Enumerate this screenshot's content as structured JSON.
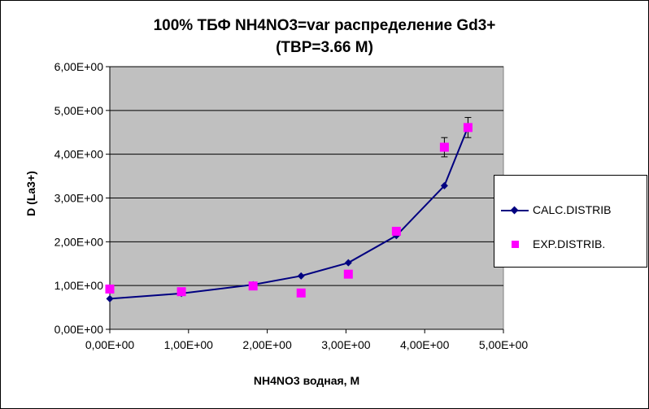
{
  "chart_data": {
    "type": "scatter",
    "title": "100%  ТБФ  NH4NO3=var распределение Gd3+",
    "subtitle": "(TBP=3.66 M)",
    "xlabel": "NH4NO3  водная, М",
    "ylabel": "D (La3+)",
    "xlim": [
      0,
      5
    ],
    "ylim": [
      0,
      6
    ],
    "x_ticks": [
      "0,00E+00",
      "1,00E+00",
      "2,00E+00",
      "3,00E+00",
      "4,00E+00",
      "5,00E+00"
    ],
    "y_ticks": [
      "0,00E+00",
      "1,00E+00",
      "2,00E+00",
      "3,00E+00",
      "4,00E+00",
      "5,00E+00",
      "6,00E+00"
    ],
    "grid": "horizontal",
    "plot_background": "#c0c0c0",
    "legend_position": "right",
    "series": [
      {
        "name": "CALC.DISTRIB",
        "style": "line-diamond",
        "color": "#000080",
        "x": [
          0,
          0.91,
          1.82,
          2.43,
          3.03,
          3.64,
          4.25,
          4.55
        ],
        "y": [
          0.7,
          0.82,
          1.02,
          1.22,
          1.52,
          2.14,
          3.28,
          4.62
        ]
      },
      {
        "name": "EXP.DISTRIB.",
        "style": "square-marker",
        "color": "#ff00ff",
        "x": [
          0,
          0.91,
          1.82,
          2.43,
          3.03,
          3.64,
          4.25,
          4.55
        ],
        "y": [
          0.92,
          0.86,
          0.99,
          0.83,
          1.26,
          2.24,
          4.16,
          4.61
        ],
        "error": [
          0,
          0,
          0,
          0,
          0,
          0.08,
          0.22,
          0.23
        ]
      }
    ]
  }
}
